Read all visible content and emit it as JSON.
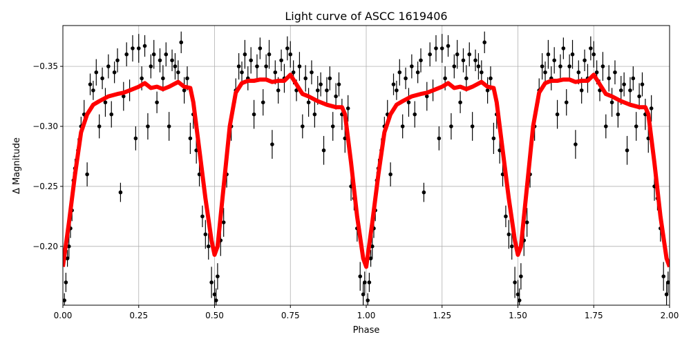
{
  "chart_data": {
    "type": "scatter",
    "title": "Light curve of ASCC 1619406",
    "xlabel": "Phase",
    "ylabel": "Δ Magnitude",
    "xlim": [
      0,
      2
    ],
    "ylim": [
      -0.151,
      -0.384
    ],
    "y_inverted": true,
    "grid": true,
    "x_ticks": [
      "0.00",
      "0.25",
      "0.50",
      "0.75",
      "1.00",
      "1.25",
      "1.50",
      "1.75",
      "2.00"
    ],
    "x_tick_values": [
      0,
      0.25,
      0.5,
      0.75,
      1,
      1.25,
      1.5,
      1.75,
      2
    ],
    "y_ticks": [
      "−0.35",
      "−0.30",
      "−0.25",
      "−0.20"
    ],
    "y_tick_values": [
      -0.35,
      -0.3,
      -0.25,
      -0.2
    ],
    "series": [
      {
        "kind": "errorbar",
        "color": "#000000",
        "x": [
          0.005,
          0.01,
          0.015,
          0.02,
          0.025,
          0.03,
          0.035,
          0.04,
          0.05,
          0.06,
          0.07,
          0.08,
          0.09,
          0.1,
          0.11,
          0.12,
          0.13,
          0.14,
          0.15,
          0.16,
          0.17,
          0.18,
          0.19,
          0.2,
          0.21,
          0.22,
          0.23,
          0.24,
          0.25,
          0.26,
          0.27,
          0.28,
          0.29,
          0.3,
          0.31,
          0.32,
          0.33,
          0.34,
          0.35,
          0.36,
          0.37,
          0.38,
          0.39,
          0.4,
          0.41,
          0.42,
          0.43,
          0.44,
          0.45,
          0.46,
          0.47,
          0.48,
          0.49,
          0.5,
          0.505,
          0.51,
          0.52,
          0.53,
          0.54,
          0.555,
          0.57,
          0.58,
          0.59,
          0.6,
          0.61,
          0.62,
          0.63,
          0.64,
          0.65,
          0.66,
          0.67,
          0.68,
          0.69,
          0.7,
          0.71,
          0.72,
          0.73,
          0.74,
          0.75,
          0.76,
          0.77,
          0.78,
          0.79,
          0.8,
          0.81,
          0.82,
          0.83,
          0.84,
          0.85,
          0.86,
          0.87,
          0.88,
          0.89,
          0.9,
          0.91,
          0.92,
          0.93,
          0.94,
          0.95,
          0.96,
          0.97,
          0.98,
          0.99,
          0.995
        ],
        "y": [
          -0.155,
          -0.17,
          -0.19,
          -0.2,
          -0.215,
          -0.23,
          -0.255,
          -0.265,
          -0.28,
          -0.3,
          -0.31,
          -0.26,
          -0.335,
          -0.33,
          -0.345,
          -0.3,
          -0.34,
          -0.32,
          -0.35,
          -0.31,
          -0.345,
          -0.355,
          -0.245,
          -0.325,
          -0.36,
          -0.33,
          -0.365,
          -0.29,
          -0.365,
          -0.34,
          -0.367,
          -0.3,
          -0.35,
          -0.36,
          -0.32,
          -0.355,
          -0.34,
          -0.36,
          -0.3,
          -0.355,
          -0.35,
          -0.345,
          -0.37,
          -0.33,
          -0.34,
          -0.29,
          -0.31,
          -0.28,
          -0.26,
          -0.225,
          -0.21,
          -0.2,
          -0.17,
          -0.16,
          -0.155,
          -0.175,
          -0.205,
          -0.22,
          -0.26,
          -0.3,
          -0.33,
          -0.35,
          -0.345,
          -0.36,
          -0.34,
          -0.355,
          -0.31,
          -0.35,
          -0.365,
          -0.32,
          -0.35,
          -0.36,
          -0.285,
          -0.345,
          -0.33,
          -0.355,
          -0.34,
          -0.365,
          -0.36,
          -0.345,
          -0.33,
          -0.35,
          -0.3,
          -0.34,
          -0.32,
          -0.345,
          -0.31,
          -0.33,
          -0.335,
          -0.28,
          -0.33,
          -0.34,
          -0.3,
          -0.325,
          -0.335,
          -0.31,
          -0.29,
          -0.315,
          -0.25,
          -0.24,
          -0.215,
          -0.175,
          -0.16,
          -0.17
        ],
        "yerr": [
          0.006,
          0.008,
          0.007,
          0.01,
          0.008,
          0.009,
          0.007,
          0.008,
          0.01,
          0.008,
          0.012,
          0.01,
          0.009,
          0.008,
          0.011,
          0.01,
          0.009,
          0.012,
          0.01,
          0.011,
          0.009,
          0.01,
          0.008,
          0.012,
          0.01,
          0.009,
          0.011,
          0.01,
          0.012,
          0.01,
          0.009,
          0.011,
          0.01,
          0.012,
          0.009,
          0.01,
          0.011,
          0.01,
          0.012,
          0.009,
          0.011,
          0.01,
          0.009,
          0.011,
          0.01,
          0.013,
          0.012,
          0.011,
          0.01,
          0.009,
          0.012,
          0.011,
          0.013,
          0.012,
          0.01,
          0.011,
          0.013,
          0.012,
          0.011,
          0.012,
          0.01,
          0.011,
          0.009,
          0.012,
          0.01,
          0.011,
          0.012,
          0.01,
          0.009,
          0.011,
          0.01,
          0.012,
          0.012,
          0.01,
          0.011,
          0.009,
          0.012,
          0.01,
          0.011,
          0.01,
          0.009,
          0.012,
          0.01,
          0.011,
          0.012,
          0.01,
          0.011,
          0.012,
          0.01,
          0.012,
          0.011,
          0.01,
          0.012,
          0.011,
          0.01,
          0.013,
          0.012,
          0.011,
          0.012,
          0.01,
          0.011,
          0.012,
          0.01,
          0.009
        ]
      },
      {
        "kind": "line",
        "color": "#ff0000",
        "x": [
          0,
          0.02,
          0.04,
          0.06,
          0.08,
          0.1,
          0.12,
          0.15,
          0.18,
          0.2,
          0.22,
          0.25,
          0.27,
          0.29,
          0.31,
          0.33,
          0.35,
          0.38,
          0.4,
          0.42,
          0.43,
          0.45,
          0.47,
          0.49,
          0.5,
          0.51,
          0.53,
          0.55,
          0.57,
          0.59,
          0.61,
          0.63,
          0.65,
          0.67,
          0.69,
          0.71,
          0.73,
          0.75,
          0.77,
          0.79,
          0.81,
          0.84,
          0.87,
          0.9,
          0.92,
          0.93,
          0.95,
          0.97,
          0.99,
          1.0
        ],
        "y": [
          -0.183,
          -0.22,
          -0.26,
          -0.295,
          -0.31,
          -0.318,
          -0.321,
          -0.325,
          -0.327,
          -0.328,
          -0.33,
          -0.333,
          -0.336,
          -0.332,
          -0.333,
          -0.331,
          -0.333,
          -0.337,
          -0.333,
          -0.332,
          -0.32,
          -0.28,
          -0.24,
          -0.205,
          -0.193,
          -0.2,
          -0.25,
          -0.3,
          -0.328,
          -0.336,
          -0.338,
          -0.338,
          -0.339,
          -0.339,
          -0.337,
          -0.338,
          -0.338,
          -0.343,
          -0.335,
          -0.327,
          -0.325,
          -0.321,
          -0.318,
          -0.316,
          -0.316,
          -0.31,
          -0.27,
          -0.225,
          -0.19,
          -0.183
        ]
      }
    ]
  }
}
